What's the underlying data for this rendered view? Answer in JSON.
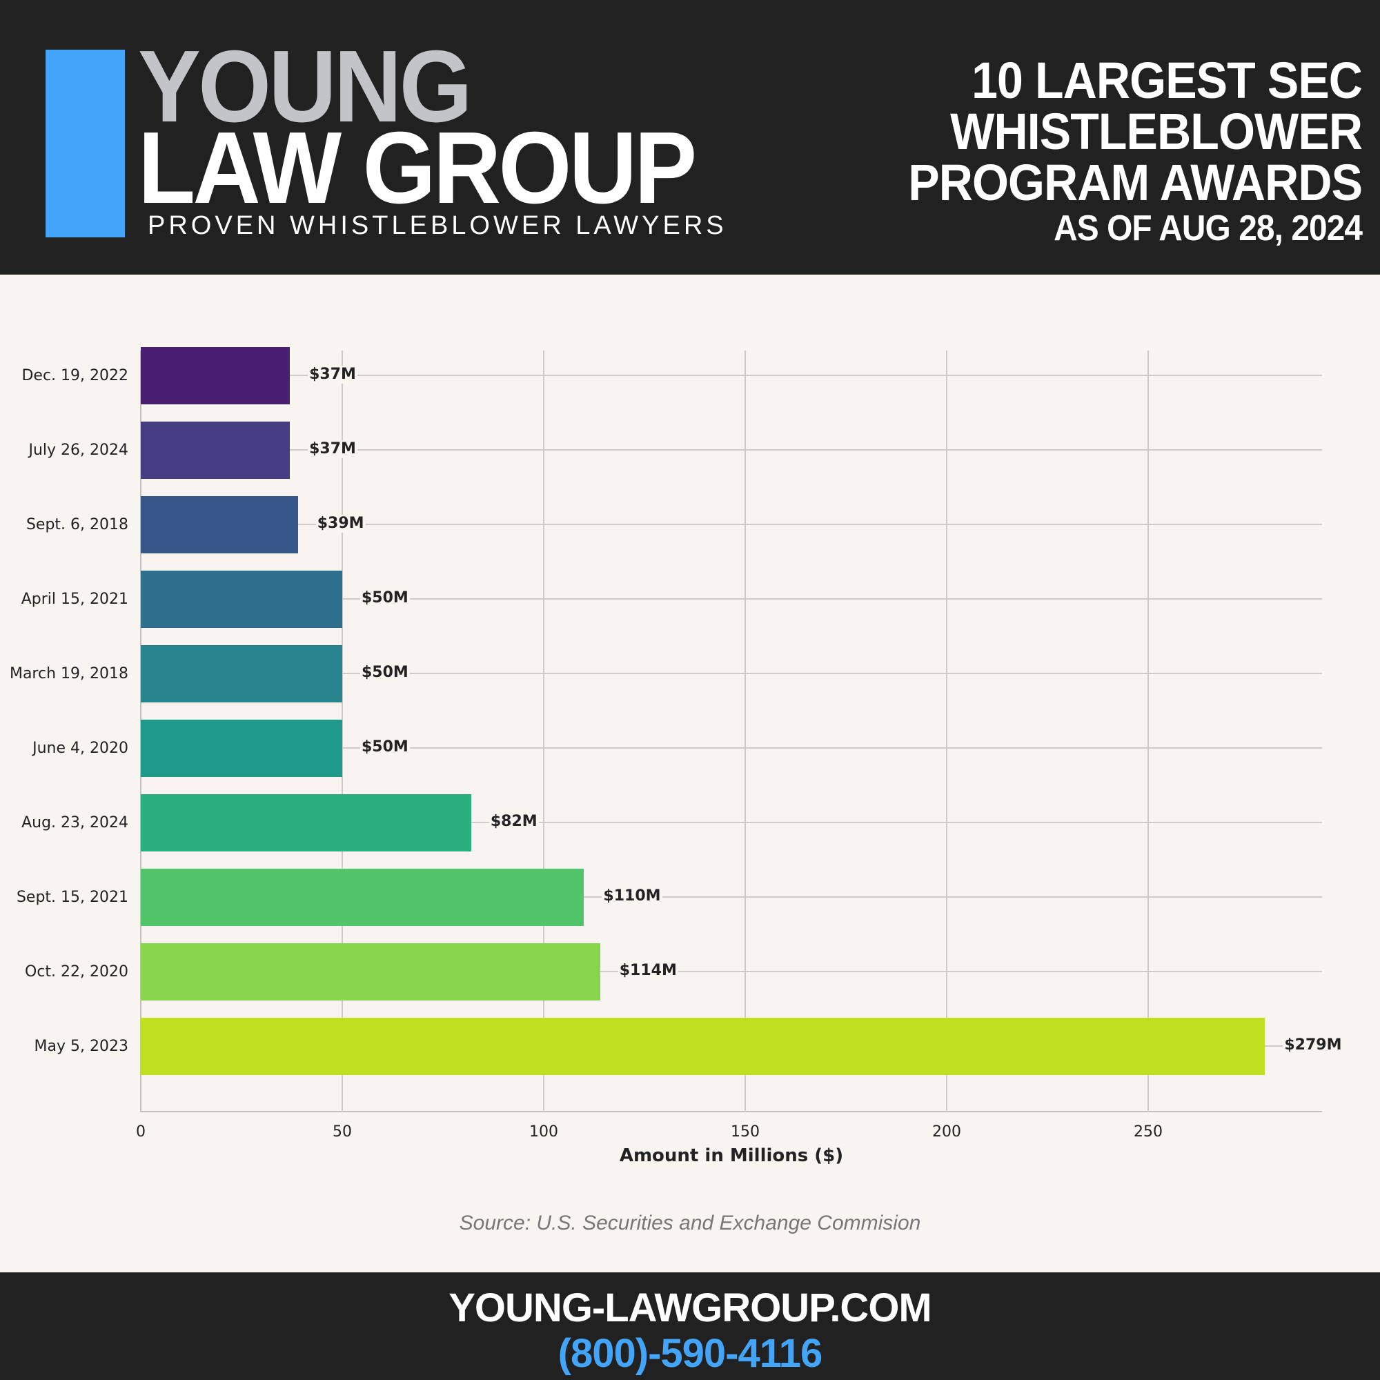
{
  "header": {
    "logo": {
      "line1": "YOUNG",
      "line2": "LAW GROUP",
      "tagline": "PROVEN WHISTLEBLOWER LAWYERS",
      "accent_color": "#42a5f9"
    },
    "title": {
      "line1": "10 LARGEST SEC",
      "line2": "WHISTLEBLOWER",
      "line3": "PROGRAM AWARDS",
      "subtitle": "AS OF AUG 28, 2024"
    }
  },
  "chart_data": {
    "type": "bar",
    "orientation": "horizontal",
    "title": "10 Largest SEC Whistleblower Program Awards as of Aug 28, 2024",
    "xlabel": "Amount in Millions ($)",
    "ylabel": "",
    "xlim": [
      0,
      293
    ],
    "xticks": [
      0,
      50,
      100,
      150,
      200,
      250
    ],
    "grid": true,
    "legend": null,
    "categories": [
      "Dec. 19, 2022",
      "July 26, 2024",
      "Sept. 6, 2018",
      "April 15, 2021",
      "March 19, 2018",
      "June 4, 2020",
      "Aug. 23, 2024",
      "Sept. 15, 2021",
      "Oct. 22, 2020",
      "May 5, 2023"
    ],
    "values": [
      37,
      37,
      39,
      50,
      50,
      50,
      82,
      110,
      114,
      279
    ],
    "data_labels": [
      "$37M",
      "$37M",
      "$39M",
      "$50M",
      "$50M",
      "$50M",
      "$82M",
      "$110M",
      "$114M",
      "$279M"
    ],
    "colors": [
      "#4a1e70",
      "#453c84",
      "#37568a",
      "#2e6f8e",
      "#25848d",
      "#1f9a8a",
      "#2ab07e",
      "#52c46a",
      "#87d64b",
      "#c2e022"
    ]
  },
  "source": "Source: U.S. Securities and Exchange Commision",
  "footer": {
    "url": "YOUNG-LAWGROUP.COM",
    "phone": "(800)-590-4116"
  }
}
